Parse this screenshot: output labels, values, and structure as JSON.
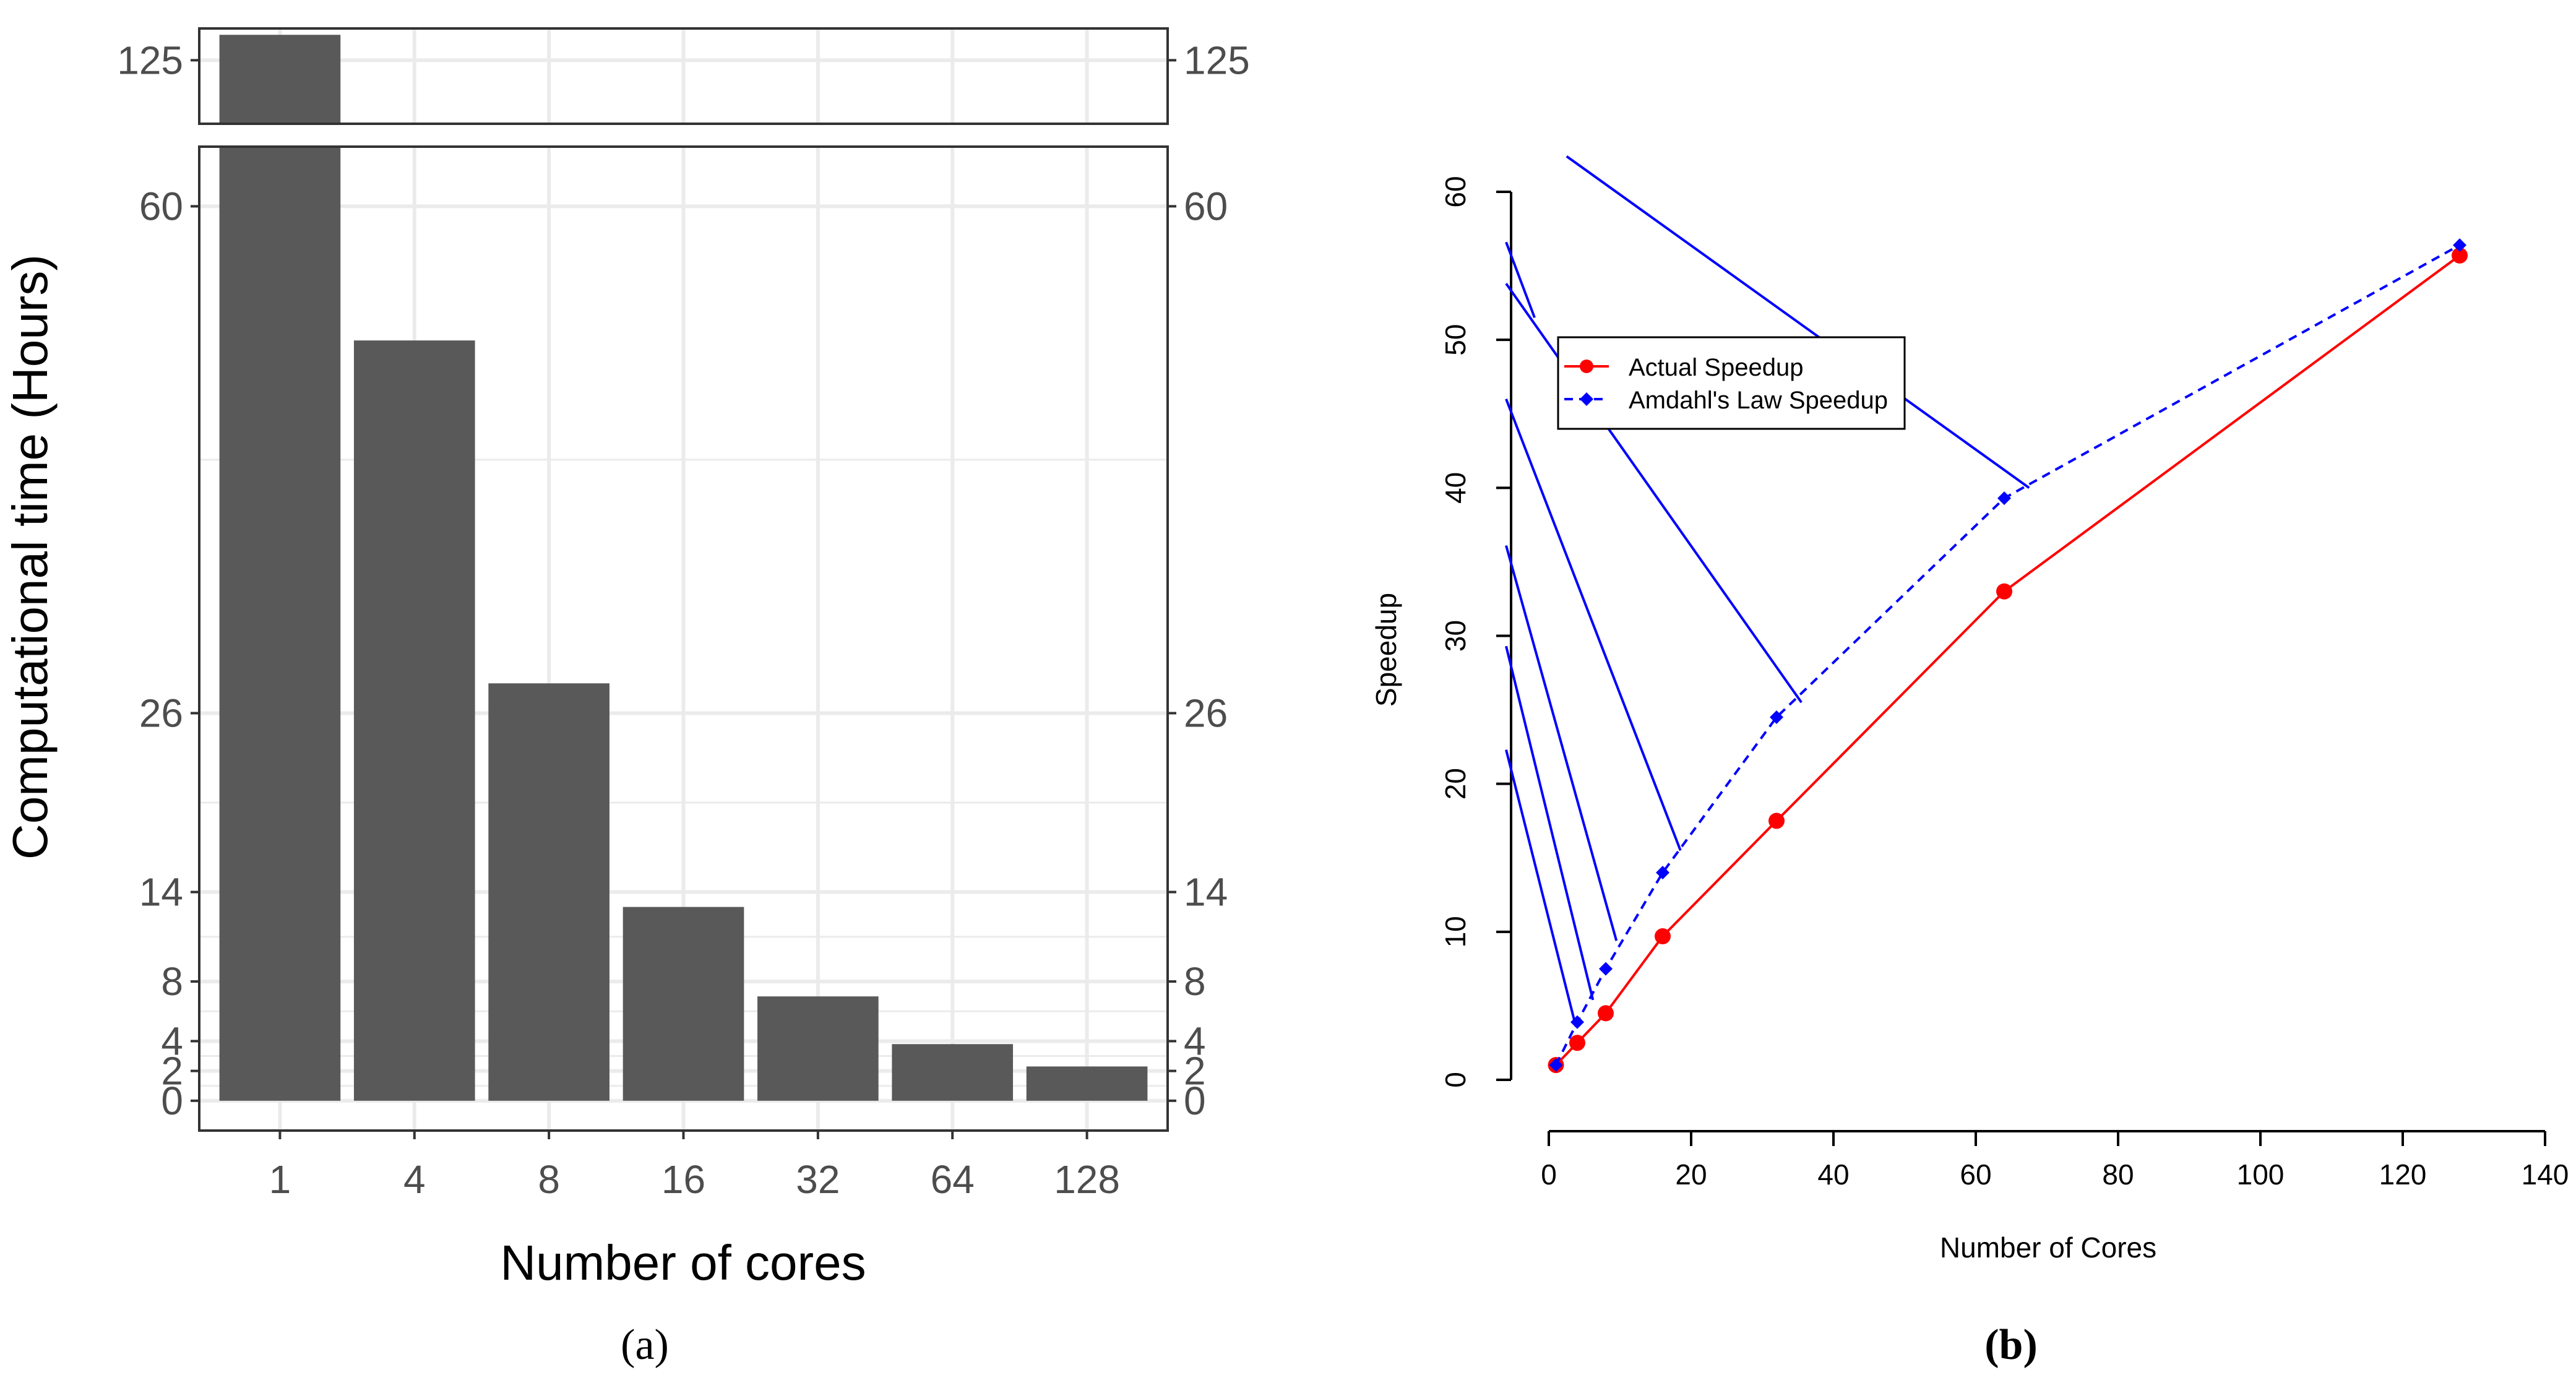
{
  "panel_a_label": "(a)",
  "panel_b_label": "(b)",
  "chart_data": [
    {
      "type": "bar",
      "panel": "a",
      "title": "",
      "xlabel": "Number of cores",
      "ylabel": "Computational time (Hours)",
      "categories": [
        "1",
        "4",
        "8",
        "16",
        "32",
        "64",
        "128"
      ],
      "values": [
        127,
        51,
        28,
        13,
        7,
        3.8,
        2.3
      ],
      "y_ticks": [
        0,
        2,
        4,
        8,
        14,
        26,
        60
      ],
      "y_ticks_broken": [
        125
      ],
      "ylim": [
        -2,
        64
      ],
      "ylim_broken": [
        120,
        127.5
      ],
      "axis_break": true,
      "grid": true,
      "bar_color": "#595959",
      "grid_color": "#ebebeb"
    },
    {
      "type": "line",
      "panel": "b",
      "title": "",
      "xlabel": "Number of Cores",
      "ylabel": "Speedup",
      "x_ticks": [
        0,
        20,
        40,
        60,
        80,
        100,
        120,
        140
      ],
      "y_ticks": [
        0,
        10,
        20,
        30,
        40,
        50,
        60
      ],
      "xlim": [
        -6,
        140
      ],
      "ylim": [
        -1,
        63
      ],
      "legend_position": "upper-left",
      "series": [
        {
          "name": "Actual Speedup",
          "color": "#ff0000",
          "style": "solid",
          "marker": "circle",
          "x": [
            1,
            4,
            8,
            16,
            32,
            64,
            128
          ],
          "y": [
            1,
            2.5,
            4.5,
            9.7,
            17.5,
            33,
            55.7
          ]
        },
        {
          "name": "Amdahl's Law Speedup",
          "color": "#0000ff",
          "style": "dashed",
          "marker": "diamond",
          "x": [
            1,
            4,
            8,
            16,
            32,
            64,
            128
          ],
          "y": [
            1,
            3.9,
            7.5,
            14,
            24.5,
            39.3,
            56.4
          ]
        }
      ],
      "annotation_color": "#0000ff",
      "annotation_lines": [
        {
          "from": [
            -6,
            22.3
          ],
          "to": [
            3.8,
            3.6
          ]
        },
        {
          "from": [
            -6,
            29.3
          ],
          "to": [
            6.2,
            5.4
          ]
        },
        {
          "from": [
            -6,
            36.1
          ],
          "to": [
            9.5,
            9.4
          ]
        },
        {
          "from": [
            -6,
            46
          ],
          "to": [
            18.5,
            15.5
          ]
        },
        {
          "from": [
            -6,
            53.8
          ],
          "to": [
            35.5,
            25.5
          ]
        },
        {
          "from": [
            -6,
            56.6
          ],
          "to": [
            -2,
            51.5
          ]
        },
        {
          "from": [
            2.5,
            62.4
          ],
          "to": [
            67.5,
            40
          ]
        }
      ]
    }
  ]
}
